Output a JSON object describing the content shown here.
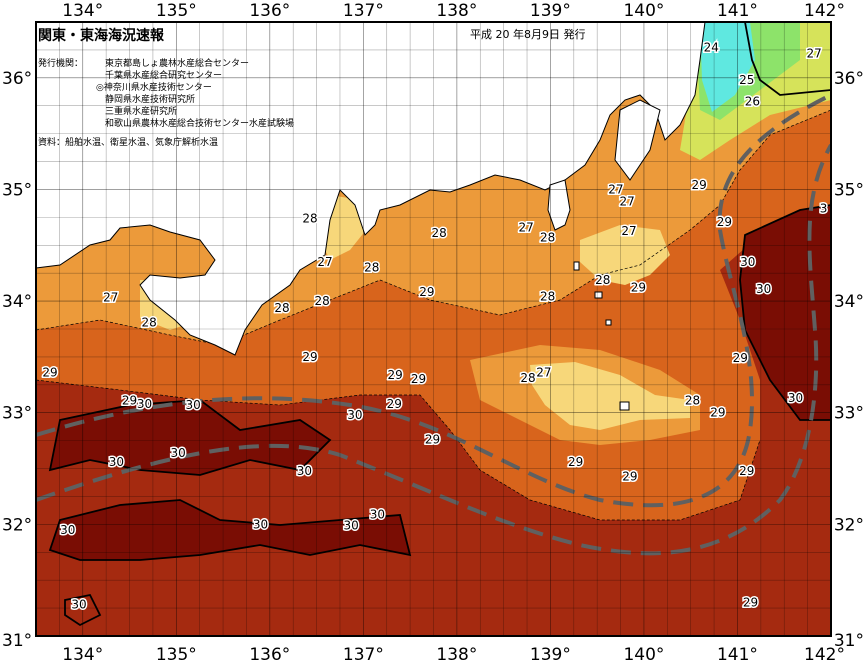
{
  "title": "関東・東海海況速報",
  "issue_date": "平成 20 年8月9日 発行",
  "issuer_label": "発行機関：",
  "issuers": [
    "東京都島しょ農林水産総合センター",
    "千葉県水産総合研究センター",
    "◎神奈川県水産技術センター",
    "静岡県水産技術研究所",
    "三重県水産研究所",
    "和歌山県農林水産総合技術センター水産試験場"
  ],
  "source": "資料：船舶水温、衛星水温、気象庁解析水温",
  "axes": {
    "longitudes": [
      "134°",
      "135°",
      "136°",
      "137°",
      "138°",
      "139°",
      "140°",
      "141°",
      "142°"
    ],
    "latitudes": [
      "36°",
      "35°",
      "34°",
      "33°",
      "32°",
      "31°"
    ],
    "lon_range": [
      133.5,
      142.0
    ],
    "lat_range": [
      31.0,
      36.5
    ]
  },
  "colors": {
    "t24": "#5fe8e0",
    "t25": "#8de36a",
    "t26": "#d6e35a",
    "t27": "#f7d77a",
    "t28": "#ec9a3a",
    "t29": "#d8641c",
    "t30": "#a52a10",
    "t31": "#7a0d04",
    "land": "#ffffff",
    "kuroshio": "#606060"
  },
  "isotherm_labels": [
    {
      "text": "24",
      "lon": 140.72,
      "lat": 36.27
    },
    {
      "text": "25",
      "lon": 141.1,
      "lat": 35.98
    },
    {
      "text": "26",
      "lon": 141.16,
      "lat": 35.79
    },
    {
      "text": "27",
      "lon": 141.82,
      "lat": 36.22
    },
    {
      "text": "29",
      "lon": 140.59,
      "lat": 35.04
    },
    {
      "text": "29",
      "lon": 140.86,
      "lat": 34.71
    },
    {
      "text": "3",
      "lon": 141.92,
      "lat": 34.83
    },
    {
      "text": "30",
      "lon": 141.11,
      "lat": 34.35
    },
    {
      "text": "30",
      "lon": 141.28,
      "lat": 34.11
    },
    {
      "text": "29",
      "lon": 141.03,
      "lat": 33.49
    },
    {
      "text": "30",
      "lon": 141.62,
      "lat": 33.13
    },
    {
      "text": "29",
      "lon": 140.79,
      "lat": 33.0
    },
    {
      "text": "29",
      "lon": 141.1,
      "lat": 32.48
    },
    {
      "text": "29",
      "lon": 141.14,
      "lat": 31.3
    },
    {
      "text": "29",
      "lon": 139.85,
      "lat": 32.43
    },
    {
      "text": "29",
      "lon": 139.27,
      "lat": 32.56
    },
    {
      "text": "28",
      "lon": 140.52,
      "lat": 33.11
    },
    {
      "text": "28",
      "lon": 138.76,
      "lat": 33.31
    },
    {
      "text": "27",
      "lon": 138.93,
      "lat": 33.36
    },
    {
      "text": "29",
      "lon": 137.59,
      "lat": 33.3
    },
    {
      "text": "29",
      "lon": 137.33,
      "lat": 33.08
    },
    {
      "text": "29",
      "lon": 137.34,
      "lat": 33.34
    },
    {
      "text": "29",
      "lon": 137.74,
      "lat": 32.76
    },
    {
      "text": "30",
      "lon": 136.91,
      "lat": 32.98
    },
    {
      "text": "30",
      "lon": 135.18,
      "lat": 33.07
    },
    {
      "text": "29",
      "lon": 134.5,
      "lat": 33.11
    },
    {
      "text": "30",
      "lon": 134.66,
      "lat": 33.08
    },
    {
      "text": "29",
      "lon": 133.65,
      "lat": 33.36
    },
    {
      "text": "30",
      "lon": 134.36,
      "lat": 32.56
    },
    {
      "text": "30",
      "lon": 135.02,
      "lat": 32.64
    },
    {
      "text": "30",
      "lon": 136.37,
      "lat": 32.48
    },
    {
      "text": "30",
      "lon": 137.15,
      "lat": 32.09
    },
    {
      "text": "30",
      "lon": 136.87,
      "lat": 31.99
    },
    {
      "text": "30",
      "lon": 135.9,
      "lat": 32.0
    },
    {
      "text": "30",
      "lon": 133.84,
      "lat": 31.95
    },
    {
      "text": "30",
      "lon": 133.96,
      "lat": 31.28
    },
    {
      "text": "29",
      "lon": 136.43,
      "lat": 33.5
    },
    {
      "text": "28",
      "lon": 136.13,
      "lat": 33.94
    },
    {
      "text": "28",
      "lon": 136.56,
      "lat": 34.0
    },
    {
      "text": "27",
      "lon": 136.59,
      "lat": 34.35
    },
    {
      "text": "28",
      "lon": 136.43,
      "lat": 34.74
    },
    {
      "text": "28",
      "lon": 137.09,
      "lat": 34.3
    },
    {
      "text": "28",
      "lon": 137.81,
      "lat": 34.61
    },
    {
      "text": "29",
      "lon": 137.68,
      "lat": 34.08
    },
    {
      "text": "27",
      "lon": 138.74,
      "lat": 34.66
    },
    {
      "text": "28",
      "lon": 138.97,
      "lat": 34.57
    },
    {
      "text": "28",
      "lon": 138.97,
      "lat": 34.04
    },
    {
      "text": "28",
      "lon": 139.56,
      "lat": 34.19
    },
    {
      "text": "29",
      "lon": 139.94,
      "lat": 34.12
    },
    {
      "text": "27",
      "lon": 139.7,
      "lat": 35.0
    },
    {
      "text": "27",
      "lon": 139.82,
      "lat": 34.89
    },
    {
      "text": "27",
      "lon": 139.84,
      "lat": 34.63
    },
    {
      "text": "27",
      "lon": 134.3,
      "lat": 34.03
    },
    {
      "text": "28",
      "lon": 134.71,
      "lat": 33.81
    }
  ]
}
